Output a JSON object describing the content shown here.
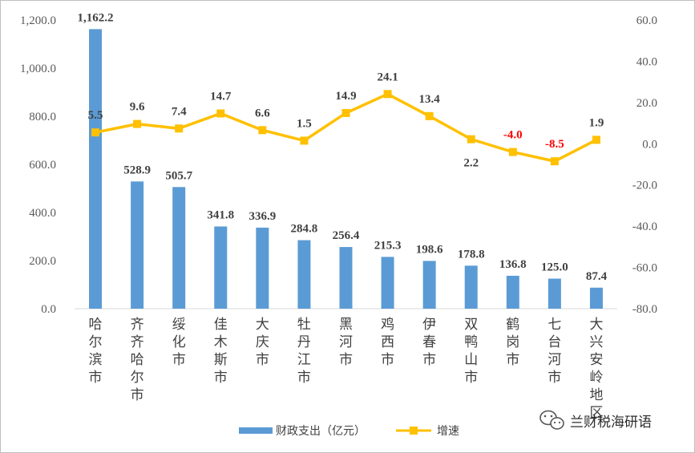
{
  "chart_data": {
    "type": "bar",
    "categories": [
      "哈尔滨市",
      "齐齐哈尔市",
      "绥化市",
      "佳木斯市",
      "大庆市",
      "牡丹江市",
      "黑河市",
      "鸡西市",
      "伊春市",
      "双鸭山市",
      "鹤岗市",
      "七台河市",
      "大兴安岭地区"
    ],
    "series": [
      {
        "name": "财政支出（亿元）",
        "type": "bar",
        "axis": "left",
        "color": "#5b9bd5",
        "values": [
          1162.2,
          528.9,
          505.7,
          341.8,
          336.9,
          284.8,
          256.4,
          215.3,
          198.6,
          178.8,
          136.8,
          125.0,
          87.4
        ],
        "labels": [
          "1,162.2",
          "528.9",
          "505.7",
          "341.8",
          "336.9",
          "284.8",
          "256.4",
          "215.3",
          "198.6",
          "178.8",
          "136.8",
          "125.0",
          "87.4"
        ]
      },
      {
        "name": "增速",
        "type": "line",
        "axis": "right",
        "color": "#ffc000",
        "values": [
          5.5,
          9.6,
          7.4,
          14.7,
          6.6,
          1.5,
          14.9,
          24.1,
          13.4,
          2.2,
          -4.0,
          -8.5,
          1.9
        ],
        "labels": [
          "5.5",
          "9.6",
          "7.4",
          "14.7",
          "6.6",
          "1.5",
          "14.9",
          "24.1",
          "13.4",
          "2.2",
          "-4.0",
          "-8.5",
          "1.9"
        ],
        "negative_label_color": "#ff0000",
        "positive_label_color": "#404040"
      }
    ],
    "y_left": {
      "min": 0,
      "max": 1200,
      "ticks": [
        0,
        200,
        400,
        600,
        800,
        1000,
        1200
      ],
      "tick_labels": [
        "0.0",
        "200.0",
        "400.0",
        "600.0",
        "800.0",
        "1,000.0",
        "1,200.0"
      ]
    },
    "y_right": {
      "min": -80,
      "max": 60,
      "ticks": [
        -80,
        -60,
        -40,
        -20,
        0,
        20,
        40,
        60
      ],
      "tick_labels": [
        "-80.0",
        "-60.0",
        "-40.0",
        "-20.0",
        "0.0",
        "20.0",
        "40.0",
        "60.0"
      ]
    },
    "grid": false,
    "legend_position": "bottom"
  },
  "legend": {
    "bar_label": "财政支出（亿元）",
    "line_label": "增速"
  },
  "watermark": {
    "text": "兰财税海研语",
    "icon": "wechat-icon"
  }
}
